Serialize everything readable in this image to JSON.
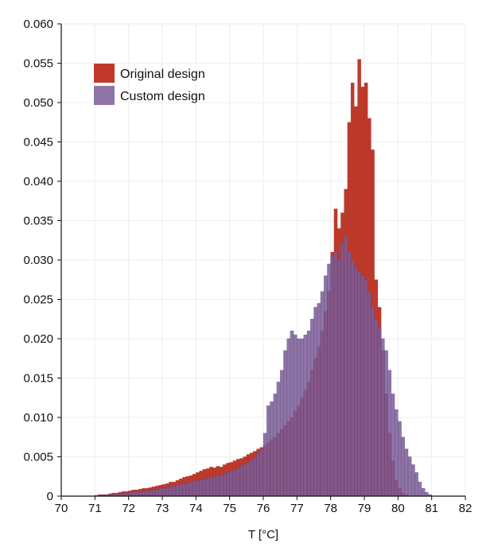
{
  "chart_data": {
    "type": "histogram",
    "title": "",
    "xlabel": "T [°C]",
    "ylabel": "",
    "xlim": [
      70,
      82
    ],
    "ylim": [
      0,
      0.06
    ],
    "bin_width": 0.1,
    "grid": true,
    "x_ticks": [
      "70",
      "71",
      "72",
      "73",
      "74",
      "75",
      "76",
      "77",
      "78",
      "79",
      "80",
      "81",
      "82"
    ],
    "y_ticks": [
      "0",
      "0.005",
      "0.010",
      "0.015",
      "0.020",
      "0.025",
      "0.030",
      "0.035",
      "0.040",
      "0.045",
      "0.050",
      "0.055",
      "0.060"
    ],
    "legend_position": "top-left",
    "series": [
      {
        "name": "Original design",
        "color": "#c0392b",
        "bins": [
          [
            71.0,
            0.0001
          ],
          [
            71.1,
            0.0002
          ],
          [
            71.2,
            0.0002
          ],
          [
            71.3,
            0.0002
          ],
          [
            71.4,
            0.0003
          ],
          [
            71.5,
            0.0004
          ],
          [
            71.6,
            0.0004
          ],
          [
            71.7,
            0.0005
          ],
          [
            71.8,
            0.0006
          ],
          [
            71.9,
            0.0006
          ],
          [
            72.0,
            0.0007
          ],
          [
            72.1,
            0.0008
          ],
          [
            72.2,
            0.0008
          ],
          [
            72.3,
            0.0009
          ],
          [
            72.4,
            0.001
          ],
          [
            72.5,
            0.001
          ],
          [
            72.6,
            0.0011
          ],
          [
            72.7,
            0.0012
          ],
          [
            72.8,
            0.0013
          ],
          [
            72.9,
            0.0014
          ],
          [
            73.0,
            0.0015
          ],
          [
            73.1,
            0.0016
          ],
          [
            73.2,
            0.0018
          ],
          [
            73.3,
            0.0018
          ],
          [
            73.4,
            0.002
          ],
          [
            73.5,
            0.0022
          ],
          [
            73.6,
            0.0024
          ],
          [
            73.7,
            0.0025
          ],
          [
            73.8,
            0.0026
          ],
          [
            73.9,
            0.0028
          ],
          [
            74.0,
            0.003
          ],
          [
            74.1,
            0.0032
          ],
          [
            74.2,
            0.0034
          ],
          [
            74.3,
            0.0035
          ],
          [
            74.4,
            0.0037
          ],
          [
            74.5,
            0.0036
          ],
          [
            74.6,
            0.0038
          ],
          [
            74.7,
            0.0037
          ],
          [
            74.8,
            0.004
          ],
          [
            74.9,
            0.0042
          ],
          [
            75.0,
            0.0043
          ],
          [
            75.1,
            0.0045
          ],
          [
            75.2,
            0.0047
          ],
          [
            75.3,
            0.0048
          ],
          [
            75.4,
            0.005
          ],
          [
            75.5,
            0.0053
          ],
          [
            75.6,
            0.0055
          ],
          [
            75.7,
            0.0057
          ],
          [
            75.8,
            0.006
          ],
          [
            75.9,
            0.0062
          ],
          [
            76.0,
            0.0065
          ],
          [
            76.1,
            0.0068
          ],
          [
            76.2,
            0.0072
          ],
          [
            76.3,
            0.0075
          ],
          [
            76.4,
            0.008
          ],
          [
            76.5,
            0.0085
          ],
          [
            76.6,
            0.009
          ],
          [
            76.7,
            0.0095
          ],
          [
            76.8,
            0.01
          ],
          [
            76.9,
            0.0108
          ],
          [
            77.0,
            0.0115
          ],
          [
            77.1,
            0.0125
          ],
          [
            77.2,
            0.0135
          ],
          [
            77.3,
            0.0145
          ],
          [
            77.4,
            0.016
          ],
          [
            77.5,
            0.0175
          ],
          [
            77.6,
            0.019
          ],
          [
            77.7,
            0.021
          ],
          [
            77.8,
            0.0235
          ],
          [
            77.9,
            0.026
          ],
          [
            78.0,
            0.031
          ],
          [
            78.1,
            0.0365
          ],
          [
            78.2,
            0.034
          ],
          [
            78.3,
            0.036
          ],
          [
            78.4,
            0.039
          ],
          [
            78.5,
            0.0475
          ],
          [
            78.6,
            0.0525
          ],
          [
            78.7,
            0.0495
          ],
          [
            78.8,
            0.0555
          ],
          [
            78.9,
            0.052
          ],
          [
            79.0,
            0.0525
          ],
          [
            79.1,
            0.048
          ],
          [
            79.2,
            0.044
          ],
          [
            79.3,
            0.0275
          ],
          [
            79.4,
            0.024
          ],
          [
            79.5,
            0.0185
          ],
          [
            79.6,
            0.013
          ],
          [
            79.7,
            0.008
          ],
          [
            79.8,
            0.0045
          ],
          [
            79.9,
            0.002
          ],
          [
            80.0,
            0.001
          ],
          [
            80.1,
            0.0004
          ],
          [
            80.2,
            0.0002
          ]
        ]
      },
      {
        "name": "Custom design",
        "color": "#7b5c99",
        "bins": [
          [
            71.0,
            0.0001
          ],
          [
            71.1,
            0.0001
          ],
          [
            71.2,
            0.0001
          ],
          [
            71.3,
            0.0002
          ],
          [
            71.4,
            0.0002
          ],
          [
            71.5,
            0.0002
          ],
          [
            71.6,
            0.0003
          ],
          [
            71.7,
            0.0003
          ],
          [
            71.8,
            0.0003
          ],
          [
            71.9,
            0.0004
          ],
          [
            72.0,
            0.0004
          ],
          [
            72.1,
            0.0005
          ],
          [
            72.2,
            0.0005
          ],
          [
            72.3,
            0.0006
          ],
          [
            72.4,
            0.0006
          ],
          [
            72.5,
            0.0007
          ],
          [
            72.6,
            0.0007
          ],
          [
            72.7,
            0.0008
          ],
          [
            72.8,
            0.0009
          ],
          [
            72.9,
            0.001
          ],
          [
            73.0,
            0.001
          ],
          [
            73.1,
            0.0011
          ],
          [
            73.2,
            0.0012
          ],
          [
            73.3,
            0.0013
          ],
          [
            73.4,
            0.0014
          ],
          [
            73.5,
            0.0015
          ],
          [
            73.6,
            0.0016
          ],
          [
            73.7,
            0.0017
          ],
          [
            73.8,
            0.0018
          ],
          [
            73.9,
            0.0019
          ],
          [
            74.0,
            0.002
          ],
          [
            74.1,
            0.0021
          ],
          [
            74.2,
            0.0022
          ],
          [
            74.3,
            0.0023
          ],
          [
            74.4,
            0.0024
          ],
          [
            74.5,
            0.0025
          ],
          [
            74.6,
            0.0026
          ],
          [
            74.7,
            0.0027
          ],
          [
            74.8,
            0.0028
          ],
          [
            74.9,
            0.003
          ],
          [
            75.0,
            0.0032
          ],
          [
            75.1,
            0.0034
          ],
          [
            75.2,
            0.0036
          ],
          [
            75.3,
            0.0038
          ],
          [
            75.4,
            0.004
          ],
          [
            75.5,
            0.0043
          ],
          [
            75.6,
            0.0046
          ],
          [
            75.7,
            0.005
          ],
          [
            75.8,
            0.0055
          ],
          [
            75.9,
            0.006
          ],
          [
            76.0,
            0.008
          ],
          [
            76.1,
            0.0115
          ],
          [
            76.2,
            0.012
          ],
          [
            76.3,
            0.013
          ],
          [
            76.4,
            0.0145
          ],
          [
            76.5,
            0.016
          ],
          [
            76.6,
            0.0185
          ],
          [
            76.7,
            0.02
          ],
          [
            76.8,
            0.021
          ],
          [
            76.9,
            0.0205
          ],
          [
            77.0,
            0.02
          ],
          [
            77.1,
            0.02
          ],
          [
            77.2,
            0.0205
          ],
          [
            77.3,
            0.021
          ],
          [
            77.4,
            0.0225
          ],
          [
            77.5,
            0.024
          ],
          [
            77.6,
            0.0245
          ],
          [
            77.7,
            0.026
          ],
          [
            77.8,
            0.028
          ],
          [
            77.9,
            0.0295
          ],
          [
            78.0,
            0.0305
          ],
          [
            78.1,
            0.031
          ],
          [
            78.2,
            0.03
          ],
          [
            78.3,
            0.032
          ],
          [
            78.4,
            0.033
          ],
          [
            78.5,
            0.031
          ],
          [
            78.6,
            0.03
          ],
          [
            78.7,
            0.029
          ],
          [
            78.8,
            0.0285
          ],
          [
            78.9,
            0.028
          ],
          [
            79.0,
            0.0275
          ],
          [
            79.1,
            0.026
          ],
          [
            79.2,
            0.024
          ],
          [
            79.3,
            0.0225
          ],
          [
            79.4,
            0.0215
          ],
          [
            79.5,
            0.02
          ],
          [
            79.6,
            0.0185
          ],
          [
            79.7,
            0.016
          ],
          [
            79.8,
            0.013
          ],
          [
            79.9,
            0.011
          ],
          [
            80.0,
            0.0095
          ],
          [
            80.1,
            0.0075
          ],
          [
            80.2,
            0.006
          ],
          [
            80.3,
            0.005
          ],
          [
            80.4,
            0.004
          ],
          [
            80.5,
            0.003
          ],
          [
            80.6,
            0.0018
          ],
          [
            80.7,
            0.001
          ],
          [
            80.8,
            0.0005
          ],
          [
            80.9,
            0.0002
          ]
        ]
      }
    ]
  }
}
